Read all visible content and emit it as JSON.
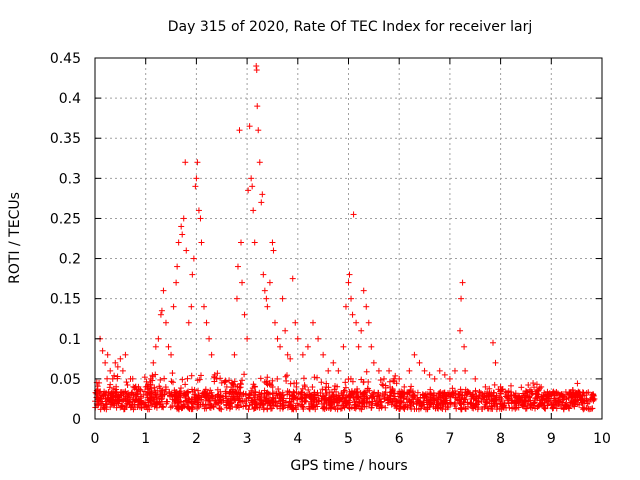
{
  "chart_data": {
    "type": "scatter",
    "title": "Day 315 of 2020, Rate Of TEC Index for receiver larj",
    "xlabel": "GPS time / hours",
    "ylabel": "ROTI / TECUs",
    "xlim": [
      0,
      10
    ],
    "ylim": [
      0,
      0.45
    ],
    "x_ticks": [
      0,
      1,
      2,
      3,
      4,
      5,
      6,
      7,
      8,
      9,
      10
    ],
    "x_tick_labels": [
      "0",
      "1",
      "2",
      "3",
      "4",
      "5",
      "6",
      "7",
      "8",
      "9",
      "10"
    ],
    "y_ticks": [
      0,
      0.05,
      0.1,
      0.15,
      0.2,
      0.25,
      0.3,
      0.35,
      0.4,
      0.45
    ],
    "y_tick_labels": [
      "0",
      "0.05",
      "0.1",
      "0.15",
      "0.2",
      "0.25",
      "0.3",
      "0.35",
      "0.4",
      "0.45"
    ],
    "grid": true,
    "marker": "+",
    "series": [
      {
        "name": "ROTI",
        "color": "#ff0000",
        "points": [
          [
            0.05,
            0.03
          ],
          [
            0.08,
            0.045
          ],
          [
            0.1,
            0.1
          ],
          [
            0.15,
            0.085
          ],
          [
            0.2,
            0.07
          ],
          [
            0.25,
            0.08
          ],
          [
            0.3,
            0.06
          ],
          [
            0.35,
            0.05
          ],
          [
            0.4,
            0.07
          ],
          [
            0.45,
            0.065
          ],
          [
            0.5,
            0.075
          ],
          [
            0.55,
            0.06
          ],
          [
            0.6,
            0.08
          ],
          [
            0.7,
            0.05
          ],
          [
            0.8,
            0.04
          ],
          [
            0.9,
            0.035
          ],
          [
            1.0,
            0.04
          ],
          [
            1.1,
            0.05
          ],
          [
            1.15,
            0.07
          ],
          [
            1.2,
            0.09
          ],
          [
            1.25,
            0.1
          ],
          [
            1.3,
            0.13
          ],
          [
            1.32,
            0.135
          ],
          [
            1.35,
            0.16
          ],
          [
            1.4,
            0.12
          ],
          [
            1.45,
            0.09
          ],
          [
            1.5,
            0.08
          ],
          [
            1.55,
            0.14
          ],
          [
            1.6,
            0.17
          ],
          [
            1.62,
            0.19
          ],
          [
            1.65,
            0.22
          ],
          [
            1.7,
            0.24
          ],
          [
            1.72,
            0.23
          ],
          [
            1.75,
            0.25
          ],
          [
            1.78,
            0.32
          ],
          [
            1.8,
            0.21
          ],
          [
            1.85,
            0.12
          ],
          [
            1.9,
            0.14
          ],
          [
            1.92,
            0.18
          ],
          [
            1.95,
            0.2
          ],
          [
            1.98,
            0.29
          ],
          [
            2.0,
            0.3
          ],
          [
            2.02,
            0.32
          ],
          [
            2.05,
            0.26
          ],
          [
            2.08,
            0.25
          ],
          [
            2.1,
            0.22
          ],
          [
            2.15,
            0.14
          ],
          [
            2.2,
            0.12
          ],
          [
            2.25,
            0.1
          ],
          [
            2.3,
            0.08
          ],
          [
            2.4,
            0.05
          ],
          [
            2.5,
            0.045
          ],
          [
            2.6,
            0.04
          ],
          [
            2.7,
            0.045
          ],
          [
            2.75,
            0.08
          ],
          [
            2.8,
            0.15
          ],
          [
            2.82,
            0.19
          ],
          [
            2.85,
            0.36
          ],
          [
            2.88,
            0.22
          ],
          [
            2.9,
            0.17
          ],
          [
            2.95,
            0.13
          ],
          [
            3.0,
            0.1
          ],
          [
            3.02,
            0.285
          ],
          [
            3.05,
            0.365
          ],
          [
            3.08,
            0.3
          ],
          [
            3.1,
            0.29
          ],
          [
            3.12,
            0.26
          ],
          [
            3.15,
            0.22
          ],
          [
            3.18,
            0.44
          ],
          [
            3.19,
            0.435
          ],
          [
            3.2,
            0.39
          ],
          [
            3.22,
            0.36
          ],
          [
            3.25,
            0.32
          ],
          [
            3.28,
            0.27
          ],
          [
            3.3,
            0.28
          ],
          [
            3.32,
            0.18
          ],
          [
            3.35,
            0.16
          ],
          [
            3.38,
            0.15
          ],
          [
            3.4,
            0.14
          ],
          [
            3.45,
            0.17
          ],
          [
            3.5,
            0.22
          ],
          [
            3.52,
            0.21
          ],
          [
            3.55,
            0.12
          ],
          [
            3.6,
            0.1
          ],
          [
            3.65,
            0.09
          ],
          [
            3.7,
            0.15
          ],
          [
            3.75,
            0.11
          ],
          [
            3.8,
            0.08
          ],
          [
            3.85,
            0.075
          ],
          [
            3.9,
            0.175
          ],
          [
            3.95,
            0.12
          ],
          [
            4.0,
            0.1
          ],
          [
            4.1,
            0.08
          ],
          [
            4.2,
            0.09
          ],
          [
            4.3,
            0.12
          ],
          [
            4.4,
            0.1
          ],
          [
            4.5,
            0.08
          ],
          [
            4.6,
            0.06
          ],
          [
            4.7,
            0.07
          ],
          [
            4.8,
            0.06
          ],
          [
            4.9,
            0.09
          ],
          [
            4.95,
            0.14
          ],
          [
            5.0,
            0.17
          ],
          [
            5.02,
            0.18
          ],
          [
            5.05,
            0.15
          ],
          [
            5.08,
            0.13
          ],
          [
            5.1,
            0.255
          ],
          [
            5.15,
            0.12
          ],
          [
            5.2,
            0.09
          ],
          [
            5.25,
            0.11
          ],
          [
            5.3,
            0.16
          ],
          [
            5.35,
            0.14
          ],
          [
            5.4,
            0.12
          ],
          [
            5.45,
            0.09
          ],
          [
            5.5,
            0.07
          ],
          [
            5.6,
            0.06
          ],
          [
            5.7,
            0.05
          ],
          [
            5.8,
            0.06
          ],
          [
            5.9,
            0.05
          ],
          [
            6.0,
            0.05
          ],
          [
            6.1,
            0.04
          ],
          [
            6.2,
            0.06
          ],
          [
            6.3,
            0.08
          ],
          [
            6.4,
            0.07
          ],
          [
            6.5,
            0.06
          ],
          [
            6.6,
            0.055
          ],
          [
            6.7,
            0.05
          ],
          [
            6.8,
            0.06
          ],
          [
            6.9,
            0.055
          ],
          [
            7.0,
            0.05
          ],
          [
            7.1,
            0.06
          ],
          [
            7.2,
            0.11
          ],
          [
            7.22,
            0.15
          ],
          [
            7.25,
            0.17
          ],
          [
            7.28,
            0.09
          ],
          [
            7.3,
            0.06
          ],
          [
            7.5,
            0.05
          ],
          [
            7.7,
            0.04
          ],
          [
            7.85,
            0.095
          ],
          [
            7.9,
            0.07
          ],
          [
            8.0,
            0.04
          ],
          [
            8.2,
            0.03
          ],
          [
            8.5,
            0.035
          ],
          [
            8.8,
            0.04
          ],
          [
            9.0,
            0.03
          ],
          [
            9.3,
            0.025
          ],
          [
            9.6,
            0.02
          ],
          [
            9.85,
            0.025
          ]
        ]
      }
    ]
  }
}
